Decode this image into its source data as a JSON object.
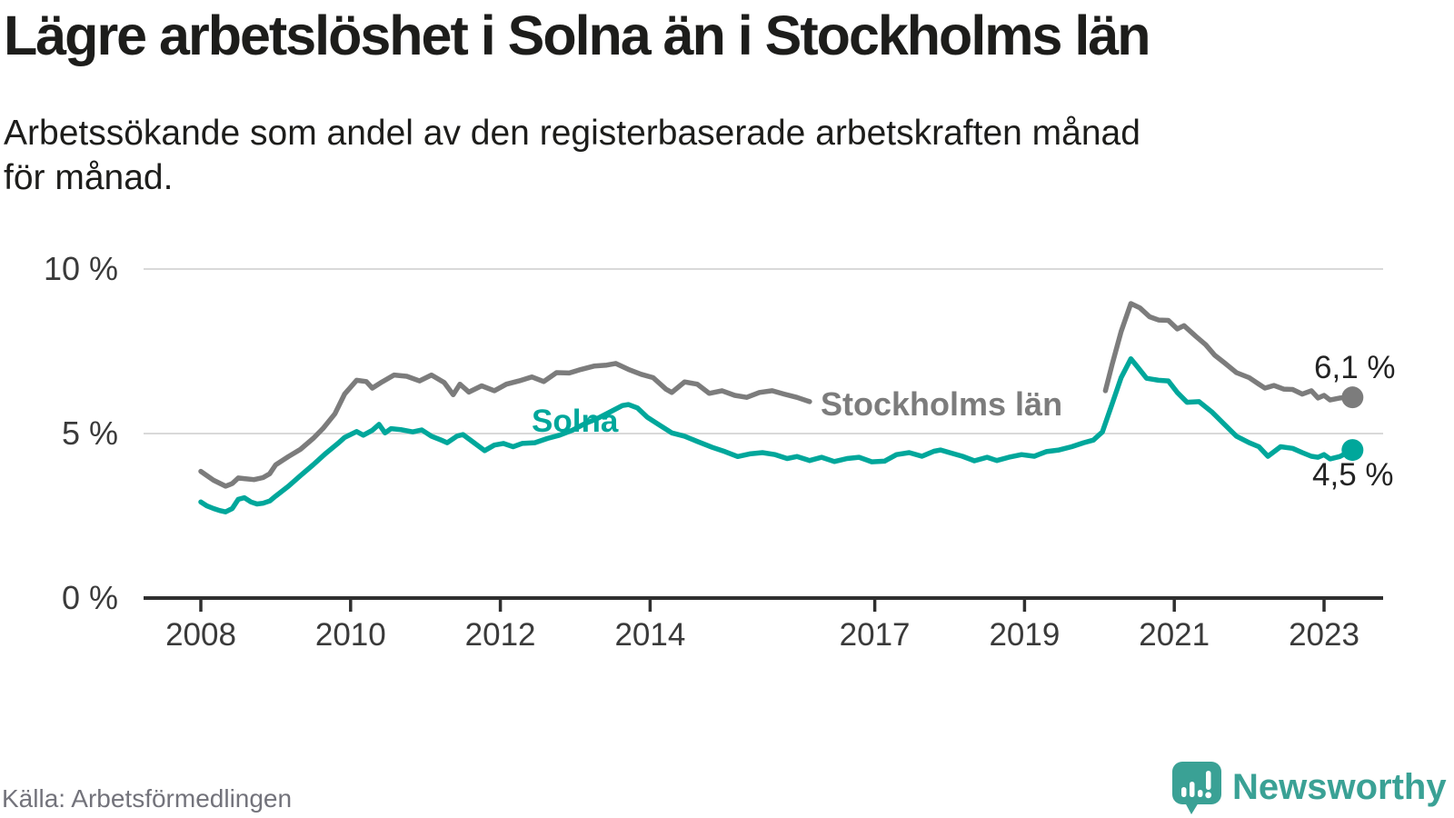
{
  "title": "Lägre arbetslöshet i Solna än i Stockholms län",
  "subtitle": {
    "line1": "Arbetssökande som andel av den registerbaserade arbetskraften månad",
    "line2": "för månad."
  },
  "footer": {
    "source": "Källa: Arbetsförmedlingen",
    "brand": "Newsworthy"
  },
  "colors": {
    "solna": "#00a79b",
    "stockholm": "#7c7c7c",
    "grid": "#d9d9d9",
    "axis": "#2f2f2f",
    "tick_text": "#3a3a3a",
    "annotation_text": "#232323",
    "source_text": "#73737b",
    "brand_teal": "#3aa195"
  },
  "chart_data": {
    "type": "line",
    "title": "Lägre arbetslöshet i Solna än i Stockholms län",
    "subtitle": "Arbetssökande som andel av den registerbaserade arbetskraften månad för månad.",
    "x_axis": {
      "unit": "year",
      "tick_years": [
        2008,
        2010,
        2012,
        2014,
        2017,
        2019,
        2021,
        2023
      ],
      "range": [
        2007.25,
        2023.75
      ]
    },
    "y_axis": {
      "unit": "%",
      "ticks": [
        {
          "value": 0,
          "label": "0 %"
        },
        {
          "value": 5,
          "label": "5 %"
        },
        {
          "value": 10,
          "label": "10 %"
        }
      ],
      "range": [
        0,
        10
      ],
      "grid": true
    },
    "legend_position": "inline-labels",
    "series": [
      {
        "name": "Stockholms län",
        "color": "#7c7c7c",
        "end_label": "6,1 %",
        "end_value": 6.1,
        "segments": [
          [
            [
              2008.0,
              3.85
            ],
            [
              2008.08,
              3.72
            ],
            [
              2008.17,
              3.58
            ],
            [
              2008.33,
              3.4
            ],
            [
              2008.42,
              3.48
            ],
            [
              2008.5,
              3.65
            ],
            [
              2008.58,
              3.63
            ],
            [
              2008.71,
              3.6
            ],
            [
              2008.83,
              3.66
            ],
            [
              2008.92,
              3.78
            ],
            [
              2009.0,
              4.05
            ],
            [
              2009.17,
              4.3
            ],
            [
              2009.33,
              4.52
            ],
            [
              2009.5,
              4.85
            ],
            [
              2009.63,
              5.15
            ],
            [
              2009.79,
              5.6
            ],
            [
              2009.92,
              6.2
            ],
            [
              2010.08,
              6.62
            ],
            [
              2010.21,
              6.58
            ],
            [
              2010.29,
              6.38
            ],
            [
              2010.42,
              6.57
            ],
            [
              2010.58,
              6.78
            ],
            [
              2010.75,
              6.74
            ],
            [
              2010.92,
              6.6
            ],
            [
              2011.08,
              6.78
            ],
            [
              2011.25,
              6.55
            ],
            [
              2011.37,
              6.18
            ],
            [
              2011.46,
              6.5
            ],
            [
              2011.58,
              6.26
            ],
            [
              2011.75,
              6.45
            ],
            [
              2011.92,
              6.3
            ],
            [
              2012.08,
              6.5
            ],
            [
              2012.25,
              6.6
            ],
            [
              2012.42,
              6.72
            ],
            [
              2012.58,
              6.58
            ],
            [
              2012.75,
              6.85
            ],
            [
              2012.92,
              6.84
            ],
            [
              2013.08,
              6.95
            ],
            [
              2013.25,
              7.05
            ],
            [
              2013.42,
              7.08
            ],
            [
              2013.54,
              7.13
            ],
            [
              2013.71,
              6.95
            ],
            [
              2013.88,
              6.8
            ],
            [
              2014.04,
              6.7
            ],
            [
              2014.21,
              6.35
            ],
            [
              2014.29,
              6.25
            ],
            [
              2014.46,
              6.57
            ],
            [
              2014.63,
              6.5
            ],
            [
              2014.79,
              6.22
            ],
            [
              2014.96,
              6.3
            ],
            [
              2015.13,
              6.16
            ],
            [
              2015.29,
              6.1
            ],
            [
              2015.46,
              6.25
            ],
            [
              2015.63,
              6.3
            ],
            [
              2015.79,
              6.2
            ],
            [
              2015.96,
              6.1
            ],
            [
              2016.13,
              5.97
            ]
          ],
          [
            [
              2020.08,
              6.3
            ],
            [
              2020.17,
              7.1
            ],
            [
              2020.29,
              8.1
            ],
            [
              2020.42,
              8.95
            ],
            [
              2020.54,
              8.82
            ],
            [
              2020.67,
              8.55
            ],
            [
              2020.79,
              8.45
            ],
            [
              2020.92,
              8.44
            ],
            [
              2021.04,
              8.18
            ],
            [
              2021.13,
              8.28
            ],
            [
              2021.29,
              7.95
            ],
            [
              2021.42,
              7.7
            ],
            [
              2021.54,
              7.38
            ],
            [
              2021.67,
              7.15
            ],
            [
              2021.83,
              6.85
            ],
            [
              2022.0,
              6.7
            ],
            [
              2022.13,
              6.5
            ],
            [
              2022.21,
              6.38
            ],
            [
              2022.33,
              6.46
            ],
            [
              2022.46,
              6.35
            ],
            [
              2022.58,
              6.34
            ],
            [
              2022.71,
              6.2
            ],
            [
              2022.83,
              6.3
            ],
            [
              2022.92,
              6.08
            ],
            [
              2023.0,
              6.16
            ],
            [
              2023.08,
              6.02
            ],
            [
              2023.21,
              6.08
            ],
            [
              2023.38,
              6.1
            ]
          ]
        ]
      },
      {
        "name": "Solna",
        "color": "#00a79b",
        "end_label": "4,5 %",
        "end_value": 4.5,
        "segments": [
          [
            [
              2008.0,
              2.92
            ],
            [
              2008.08,
              2.8
            ],
            [
              2008.17,
              2.72
            ],
            [
              2008.25,
              2.66
            ],
            [
              2008.33,
              2.62
            ],
            [
              2008.42,
              2.72
            ],
            [
              2008.5,
              3.0
            ],
            [
              2008.58,
              3.05
            ],
            [
              2008.67,
              2.92
            ],
            [
              2008.75,
              2.86
            ],
            [
              2008.83,
              2.88
            ],
            [
              2008.92,
              2.95
            ],
            [
              2009.0,
              3.1
            ],
            [
              2009.17,
              3.4
            ],
            [
              2009.33,
              3.72
            ],
            [
              2009.5,
              4.05
            ],
            [
              2009.67,
              4.4
            ],
            [
              2009.83,
              4.7
            ],
            [
              2009.92,
              4.88
            ],
            [
              2010.08,
              5.06
            ],
            [
              2010.17,
              4.95
            ],
            [
              2010.29,
              5.1
            ],
            [
              2010.38,
              5.28
            ],
            [
              2010.46,
              5.02
            ],
            [
              2010.54,
              5.15
            ],
            [
              2010.67,
              5.12
            ],
            [
              2010.83,
              5.05
            ],
            [
              2010.95,
              5.11
            ],
            [
              2011.08,
              4.92
            ],
            [
              2011.21,
              4.8
            ],
            [
              2011.29,
              4.72
            ],
            [
              2011.42,
              4.92
            ],
            [
              2011.5,
              4.97
            ],
            [
              2011.63,
              4.75
            ],
            [
              2011.79,
              4.48
            ],
            [
              2011.92,
              4.65
            ],
            [
              2012.04,
              4.7
            ],
            [
              2012.17,
              4.6
            ],
            [
              2012.29,
              4.7
            ],
            [
              2012.46,
              4.72
            ],
            [
              2012.63,
              4.85
            ],
            [
              2012.79,
              4.95
            ],
            [
              2012.96,
              5.1
            ],
            [
              2013.13,
              5.3
            ],
            [
              2013.29,
              5.45
            ],
            [
              2013.46,
              5.65
            ],
            [
              2013.63,
              5.85
            ],
            [
              2013.71,
              5.88
            ],
            [
              2013.83,
              5.78
            ],
            [
              2013.96,
              5.5
            ],
            [
              2014.13,
              5.25
            ],
            [
              2014.29,
              5.02
            ],
            [
              2014.46,
              4.92
            ],
            [
              2014.63,
              4.76
            ],
            [
              2014.83,
              4.58
            ],
            [
              2015.0,
              4.45
            ],
            [
              2015.17,
              4.3
            ],
            [
              2015.33,
              4.38
            ],
            [
              2015.5,
              4.42
            ],
            [
              2015.67,
              4.36
            ],
            [
              2015.83,
              4.24
            ],
            [
              2015.96,
              4.3
            ],
            [
              2016.13,
              4.18
            ],
            [
              2016.29,
              4.28
            ],
            [
              2016.46,
              4.15
            ],
            [
              2016.63,
              4.24
            ],
            [
              2016.79,
              4.28
            ],
            [
              2016.96,
              4.14
            ],
            [
              2017.13,
              4.16
            ],
            [
              2017.29,
              4.36
            ],
            [
              2017.46,
              4.42
            ],
            [
              2017.63,
              4.31
            ],
            [
              2017.79,
              4.46
            ],
            [
              2017.88,
              4.5
            ],
            [
              2018.0,
              4.42
            ],
            [
              2018.17,
              4.31
            ],
            [
              2018.33,
              4.17
            ],
            [
              2018.5,
              4.28
            ],
            [
              2018.63,
              4.18
            ],
            [
              2018.79,
              4.28
            ],
            [
              2018.96,
              4.36
            ],
            [
              2019.13,
              4.31
            ],
            [
              2019.29,
              4.45
            ],
            [
              2019.46,
              4.5
            ],
            [
              2019.63,
              4.6
            ],
            [
              2019.79,
              4.72
            ],
            [
              2019.92,
              4.8
            ],
            [
              2020.04,
              5.05
            ],
            [
              2020.17,
              5.9
            ],
            [
              2020.29,
              6.7
            ],
            [
              2020.42,
              7.27
            ],
            [
              2020.5,
              7.05
            ],
            [
              2020.63,
              6.68
            ],
            [
              2020.79,
              6.62
            ],
            [
              2020.92,
              6.6
            ],
            [
              2021.04,
              6.25
            ],
            [
              2021.17,
              5.95
            ],
            [
              2021.33,
              5.97
            ],
            [
              2021.5,
              5.66
            ],
            [
              2021.67,
              5.28
            ],
            [
              2021.83,
              4.92
            ],
            [
              2022.0,
              4.72
            ],
            [
              2022.13,
              4.6
            ],
            [
              2022.25,
              4.31
            ],
            [
              2022.42,
              4.6
            ],
            [
              2022.58,
              4.55
            ],
            [
              2022.71,
              4.42
            ],
            [
              2022.83,
              4.31
            ],
            [
              2022.92,
              4.28
            ],
            [
              2023.0,
              4.36
            ],
            [
              2023.08,
              4.23
            ],
            [
              2023.21,
              4.3
            ],
            [
              2023.38,
              4.5
            ]
          ]
        ]
      }
    ]
  }
}
